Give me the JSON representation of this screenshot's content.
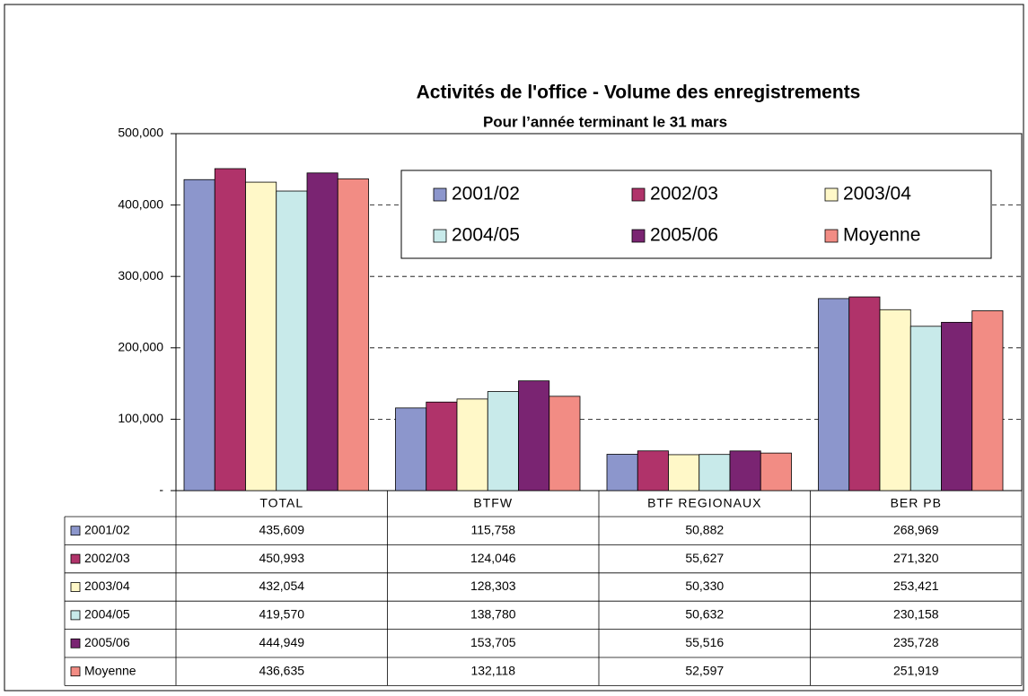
{
  "chart_data": {
    "type": "bar",
    "title": "Activités de l'office - Volume des enregistrements",
    "subtitle": "Pour l’année terminant le 31 mars",
    "categories": [
      "TOTAL",
      "BTFW",
      "BTF REGIONAUX",
      "BER PB"
    ],
    "series": [
      {
        "name": "2001/02",
        "color": "#8c96cc",
        "values": [
          435609,
          115758,
          50882,
          268969
        ],
        "value_labels": [
          "435,609",
          "115,758",
          "50,882",
          "268,969"
        ]
      },
      {
        "name": "2002/03",
        "color": "#b0336a",
        "values": [
          450993,
          124046,
          55627,
          271320
        ],
        "value_labels": [
          "450,993",
          "124,046",
          "55,627",
          "271,320"
        ]
      },
      {
        "name": "2003/04",
        "color": "#fff8c8",
        "values": [
          432054,
          128303,
          50330,
          253421
        ],
        "value_labels": [
          "432,054",
          "128,303",
          "50,330",
          "253,421"
        ]
      },
      {
        "name": "2004/05",
        "color": "#c8eaea",
        "values": [
          419570,
          138780,
          50632,
          230158
        ],
        "value_labels": [
          "419,570",
          "138,780",
          "50,632",
          "230,158"
        ]
      },
      {
        "name": "2005/06",
        "color": "#7a2472",
        "values": [
          444949,
          153705,
          55516,
          235728
        ],
        "value_labels": [
          "444,949",
          "153,705",
          "55,516",
          "235,728"
        ]
      },
      {
        "name": "Moyenne",
        "color": "#f28c84",
        "values": [
          436635,
          132118,
          52597,
          251919
        ],
        "value_labels": [
          "436,635",
          "132,118",
          "52,597",
          "251,919"
        ]
      }
    ],
    "ylim": [
      0,
      500000
    ],
    "yticks": [
      {
        "value": 0,
        "label": "-"
      },
      {
        "value": 100000,
        "label": "100,000"
      },
      {
        "value": 200000,
        "label": "200,000"
      },
      {
        "value": 300000,
        "label": "300,000"
      },
      {
        "value": 400000,
        "label": "400,000"
      },
      {
        "value": 500000,
        "label": "500,000"
      }
    ],
    "grid": true,
    "legend": "upper right"
  }
}
